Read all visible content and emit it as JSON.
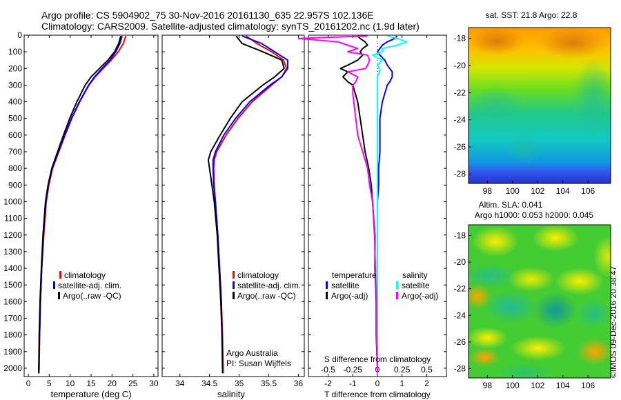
{
  "header": {
    "line1": "Argo profile: CS 5904902_75 30-Nov-2016 20161130_635 22.957S 102.136E",
    "line2": "Climatology: CARS2009. Satellite-adjusted climatology: synTS_20161202.nc (1.9d later)"
  },
  "footer": {
    "imos_stamp": "©IMOS 09-Dec-2016 20:38:47"
  },
  "colors": {
    "climatology": "#ff0000",
    "satellite": "#0000ff",
    "argo": "#000000",
    "temp_satellite": "#0000ff",
    "temp_argo": "#000000",
    "sal_satellite": "#00ffff",
    "sal_argo": "#ff00ff"
  },
  "chart_data": [
    {
      "id": "temperature",
      "type": "line",
      "xlabel": "temperature (deg C)",
      "ylabel": "",
      "xlim": [
        -1,
        31
      ],
      "ylim": [
        2050,
        0
      ],
      "xticks": [
        "0",
        "5",
        "10",
        "15",
        "20",
        "25",
        "30"
      ],
      "yticks": [
        "0",
        "100",
        "200",
        "300",
        "400",
        "500",
        "600",
        "700",
        "800",
        "900",
        "1000",
        "1100",
        "1200",
        "1300",
        "1400",
        "1500",
        "1600",
        "1700",
        "1800",
        "1900",
        "2000"
      ],
      "legend": [
        "climatology",
        "satellite-adj. clim.",
        "Argo(..raw -QC)"
      ],
      "depth": [
        5,
        50,
        100,
        150,
        200,
        250,
        300,
        400,
        500,
        600,
        700,
        800,
        900,
        1000,
        1200,
        1400,
        1600,
        1800,
        2000,
        2030
      ],
      "series": [
        {
          "name": "climatology",
          "values": [
            23.3,
            22.7,
            21.5,
            19.8,
            17.9,
            16.0,
            14.5,
            12.3,
            10.4,
            8.8,
            7.3,
            5.8,
            4.9,
            4.3,
            3.7,
            3.2,
            2.9,
            2.7,
            2.6,
            2.5
          ]
        },
        {
          "name": "satellite-adj. clim.",
          "values": [
            22.4,
            21.9,
            20.9,
            19.5,
            17.6,
            15.8,
            14.4,
            12.2,
            10.3,
            8.7,
            7.2,
            5.7,
            4.8,
            4.2,
            3.6,
            3.2,
            2.9,
            2.7,
            2.5,
            2.5
          ]
        },
        {
          "name": "Argo(..raw -QC)",
          "values": [
            22.1,
            21.6,
            20.6,
            19.0,
            17.0,
            15.0,
            13.6,
            11.6,
            9.9,
            8.4,
            7.0,
            5.6,
            4.7,
            4.1,
            3.5,
            3.1,
            2.8,
            2.6,
            2.5,
            2.5
          ]
        }
      ]
    },
    {
      "id": "salinity",
      "type": "line",
      "xlabel": "salinity",
      "ylabel": "",
      "xlim": [
        33.7,
        36.1
      ],
      "ylim": [
        2050,
        0
      ],
      "xticks": [
        "34",
        "34.5",
        "35",
        "35.5",
        "36"
      ],
      "legend": [
        "climatology",
        "satellite-adj. clim.",
        "Argo(..raw -QC)"
      ],
      "annotation": [
        "Argo Australia",
        "PI: Susan Wijffels"
      ],
      "depth": [
        5,
        50,
        100,
        150,
        200,
        250,
        300,
        400,
        500,
        600,
        700,
        750,
        800,
        900,
        1000,
        1200,
        1400,
        1600,
        1800,
        2000,
        2030
      ],
      "series": [
        {
          "name": "climatology",
          "values": [
            35.12,
            35.3,
            35.55,
            35.75,
            35.8,
            35.72,
            35.55,
            35.22,
            34.98,
            34.78,
            34.62,
            34.58,
            34.57,
            34.58,
            34.6,
            34.64,
            34.67,
            34.7,
            34.72,
            34.73,
            34.73
          ]
        },
        {
          "name": "satellite-adj. clim.",
          "values": [
            35.05,
            35.38,
            35.6,
            35.82,
            35.82,
            35.72,
            35.52,
            35.18,
            34.94,
            34.74,
            34.6,
            34.56,
            34.56,
            34.57,
            34.6,
            34.64,
            34.67,
            34.7,
            34.71,
            34.72,
            34.72
          ]
        },
        {
          "name": "Argo(..raw -QC)",
          "values": [
            34.95,
            35.05,
            35.4,
            35.72,
            35.76,
            35.6,
            35.4,
            35.05,
            34.85,
            34.68,
            34.52,
            34.48,
            34.5,
            34.54,
            34.58,
            34.63,
            34.66,
            34.69,
            34.71,
            34.72,
            34.72
          ]
        }
      ]
    },
    {
      "id": "difference",
      "type": "line",
      "xlabel": "T difference from climatology",
      "xlabel_top": "S difference from climatology",
      "xlim": [
        -2.8,
        2.8
      ],
      "ylim": [
        2050,
        0
      ],
      "xticks_t": [
        "-2",
        "-1",
        "0",
        "1",
        "2"
      ],
      "xticks_s": [
        "-0.5",
        "-0.25",
        "0",
        "0.25",
        "0.5"
      ],
      "legend_headers": [
        "temperature",
        "salinity"
      ],
      "legend_t": [
        "satellite",
        "Argo(-adj)"
      ],
      "legend_s": [
        "satellite",
        "Argo(-adj)"
      ],
      "depth": [
        5,
        20,
        40,
        60,
        80,
        100,
        120,
        150,
        180,
        200,
        220,
        250,
        280,
        300,
        350,
        400,
        500,
        600,
        700,
        800,
        900,
        1000,
        1100,
        1200,
        1400,
        1600,
        1800,
        2000,
        2030
      ],
      "series": [
        {
          "name": "temperature satellite",
          "values": [
            0.8,
            0.7,
            0.4,
            0.2,
            0.1,
            0.0,
            0.1,
            0.3,
            0.4,
            0.5,
            0.6,
            0.6,
            0.5,
            0.4,
            0.3,
            0.2,
            0.1,
            0.1,
            0.1,
            0.05,
            0.05,
            0.0,
            0.0,
            0.0,
            0.0,
            0.0,
            0.0,
            0.0,
            0.0
          ]
        },
        {
          "name": "temperature Argo(-adj)",
          "values": [
            -0.8,
            -0.7,
            -0.5,
            -0.4,
            -0.6,
            -0.7,
            -0.6,
            -0.8,
            -1.2,
            -1.5,
            -1.2,
            -1.4,
            -1.2,
            -1.0,
            -0.9,
            -0.8,
            -0.7,
            -0.6,
            -0.5,
            -0.35,
            -0.25,
            -0.2,
            -0.15,
            -0.1,
            -0.1,
            -0.05,
            -0.05,
            0.0,
            0.0
          ]
        },
        {
          "name": "salinity satellite",
          "values": [
            0.1,
            0.2,
            0.3,
            0.2,
            0.05,
            0.05,
            -0.05,
            0.05,
            0.0,
            0.02,
            0.02,
            0.0,
            0.0,
            0.0,
            0.0,
            0.0,
            0.0,
            0.0,
            0.0,
            0.0,
            0.0,
            0.0,
            0.0,
            0.0,
            0.0,
            0.0,
            0.0,
            0.0,
            0.0
          ]
        },
        {
          "name": "salinity Argo(-adj)",
          "values": [
            -0.1,
            -0.8,
            -0.4,
            -0.3,
            -0.2,
            -0.3,
            -0.1,
            -0.08,
            -0.1,
            -0.12,
            -0.3,
            -0.2,
            -0.22,
            -0.25,
            -0.25,
            -0.24,
            -0.22,
            -0.2,
            -0.15,
            -0.1,
            -0.08,
            -0.05,
            -0.04,
            -0.03,
            -0.02,
            -0.01,
            -0.01,
            0.0,
            0.0
          ]
        }
      ]
    },
    {
      "id": "sst_map",
      "type": "heatmap",
      "title": "sat. SST: 21.8  Argo: 22.8",
      "xlim": [
        96.5,
        107.8
      ],
      "ylim": [
        -28.7,
        -17.2
      ],
      "xticks": [
        "98",
        "100",
        "102",
        "104",
        "106"
      ],
      "yticks": [
        "-18",
        "-20",
        "-22",
        "-24",
        "-26",
        "-28"
      ]
    },
    {
      "id": "sla_map",
      "type": "heatmap",
      "title": "Altim. SLA: 0.041",
      "subtitle": "Argo h1000: 0.053  h2000: 0.045",
      "xlim": [
        96.5,
        107.8
      ],
      "ylim": [
        -28.7,
        -17.2
      ],
      "xticks": [
        "98",
        "100",
        "102",
        "104",
        "106"
      ],
      "yticks": [
        "-18",
        "-20",
        "-22",
        "-24",
        "-26",
        "-28"
      ]
    }
  ]
}
